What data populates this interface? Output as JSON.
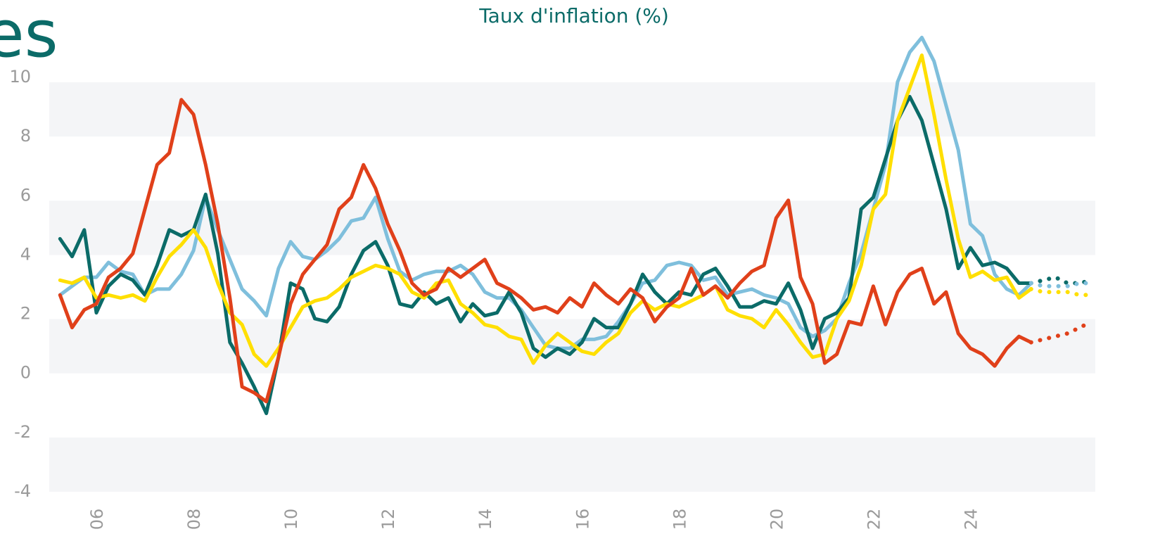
{
  "heading": "es",
  "chart_data": {
    "type": "line",
    "title": "Taux d'inflation (%)",
    "x": [
      2005.25,
      2005.5,
      2005.75,
      2006,
      2006.25,
      2006.5,
      2006.75,
      2007,
      2007.25,
      2007.5,
      2007.75,
      2008,
      2008.25,
      2008.5,
      2008.75,
      2009,
      2009.25,
      2009.5,
      2009.75,
      2010,
      2010.25,
      2010.5,
      2010.75,
      2011,
      2011.25,
      2011.5,
      2011.75,
      2012,
      2012.25,
      2012.5,
      2012.75,
      2013,
      2013.25,
      2013.5,
      2013.75,
      2014,
      2014.25,
      2014.5,
      2014.75,
      2015,
      2015.25,
      2015.5,
      2015.75,
      2016,
      2016.25,
      2016.5,
      2016.75,
      2017,
      2017.25,
      2017.5,
      2017.75,
      2018,
      2018.25,
      2018.5,
      2018.75,
      2019,
      2019.25,
      2019.5,
      2019.75,
      2020,
      2020.25,
      2020.5,
      2020.75,
      2021,
      2021.25,
      2021.5,
      2021.75,
      2022,
      2022.25,
      2022.5,
      2022.75,
      2023,
      2023.25,
      2023.5,
      2023.75,
      2024,
      2024.25,
      2024.5,
      2024.75,
      2025,
      2025.25
    ],
    "series": [
      {
        "color": "#7fbfdc",
        "values": [
          2.6,
          2.9,
          3.2,
          3.2,
          3.7,
          3.4,
          3.3,
          2.6,
          2.8,
          2.8,
          3.3,
          4.1,
          5.9,
          4.8,
          3.8,
          2.8,
          2.4,
          1.9,
          3.5,
          4.4,
          3.9,
          3.8,
          4.1,
          4.5,
          5.1,
          5.2,
          5.9,
          4.5,
          3.4,
          3.1,
          3.3,
          3.4,
          3.4,
          3.6,
          3.3,
          2.7,
          2.5,
          2.5,
          2.1,
          1.5,
          0.9,
          0.8,
          0.8,
          1.1,
          1.1,
          1.2,
          1.7,
          2.3,
          3.0,
          3.1,
          3.6,
          3.7,
          3.6,
          3.1,
          3.2,
          2.6,
          2.7,
          2.8,
          2.6,
          2.5,
          2.3,
          1.5,
          1.2,
          1.4,
          1.8,
          3.0,
          4.0,
          5.5,
          7.0,
          9.8,
          10.8,
          11.3,
          10.5,
          9.0,
          7.5,
          5.0,
          4.6,
          3.3,
          2.8,
          2.6,
          3.0
        ]
      },
      {
        "color": "#0b6b68",
        "values": [
          4.5,
          3.9,
          4.8,
          2.0,
          2.9,
          3.3,
          3.1,
          2.6,
          3.6,
          4.8,
          4.6,
          4.8,
          6.0,
          4.0,
          1.0,
          0.3,
          -0.5,
          -1.4,
          0.5,
          3.0,
          2.8,
          1.8,
          1.7,
          2.2,
          3.3,
          4.1,
          4.4,
          3.6,
          2.3,
          2.2,
          2.7,
          2.3,
          2.5,
          1.7,
          2.3,
          1.9,
          2.0,
          2.7,
          2.0,
          0.8,
          0.5,
          0.8,
          0.6,
          1.0,
          1.8,
          1.5,
          1.5,
          2.3,
          3.3,
          2.7,
          2.3,
          2.7,
          2.6,
          3.3,
          3.5,
          2.9,
          2.2,
          2.2,
          2.4,
          2.3,
          3.0,
          2.1,
          0.8,
          1.8,
          2.0,
          2.5,
          5.5,
          5.9,
          7.2,
          8.5,
          9.3,
          8.5,
          7.0,
          5.5,
          3.5,
          4.2,
          3.6,
          3.7,
          3.5,
          3.0,
          3.0
        ]
      },
      {
        "color": "#ffdf00",
        "values": [
          3.1,
          3.0,
          3.2,
          2.5,
          2.6,
          2.5,
          2.6,
          2.4,
          3.2,
          3.9,
          4.3,
          4.8,
          4.2,
          3.0,
          2.0,
          1.6,
          0.6,
          0.2,
          0.8,
          1.5,
          2.2,
          2.4,
          2.5,
          2.8,
          3.2,
          3.4,
          3.6,
          3.5,
          3.3,
          2.7,
          2.5,
          3.0,
          3.1,
          2.3,
          2.0,
          1.6,
          1.5,
          1.2,
          1.1,
          0.3,
          0.9,
          1.3,
          1.0,
          0.7,
          0.6,
          1.0,
          1.3,
          2.0,
          2.4,
          2.1,
          2.3,
          2.2,
          2.4,
          2.6,
          2.9,
          2.1,
          1.9,
          1.8,
          1.5,
          2.1,
          1.6,
          1.0,
          0.5,
          0.6,
          1.8,
          2.4,
          3.6,
          5.5,
          6.0,
          8.5,
          9.6,
          10.7,
          8.7,
          6.5,
          4.5,
          3.2,
          3.4,
          3.1,
          3.2,
          2.5,
          2.8
        ]
      },
      {
        "color": "#e0401a",
        "values": [
          2.6,
          1.5,
          2.1,
          2.3,
          3.2,
          3.5,
          4.0,
          5.5,
          7.0,
          7.4,
          9.2,
          8.7,
          7.0,
          5.0,
          2.5,
          -0.5,
          -0.7,
          -1.0,
          0.5,
          2.3,
          3.3,
          3.8,
          4.3,
          5.5,
          5.9,
          7.0,
          6.2,
          5.0,
          4.1,
          3.0,
          2.6,
          2.8,
          3.5,
          3.2,
          3.5,
          3.8,
          3.0,
          2.8,
          2.5,
          2.1,
          2.2,
          2.0,
          2.5,
          2.2,
          3.0,
          2.6,
          2.3,
          2.8,
          2.5,
          1.7,
          2.2,
          2.5,
          3.5,
          2.6,
          2.9,
          2.5,
          3.0,
          3.4,
          3.6,
          5.2,
          5.8,
          3.2,
          2.3,
          0.3,
          0.6,
          1.7,
          1.6,
          2.9,
          1.6,
          2.7,
          3.3,
          3.5,
          2.3,
          2.7,
          1.3,
          0.8,
          0.6,
          0.2,
          0.8,
          1.2,
          1.0
        ]
      },
      {
        "color": "#0b6b68",
        "dash": "dotted",
        "x": [
          2025.25,
          2025.5,
          2025.75,
          2026,
          2026.25,
          2026.5
        ],
        "values": [
          3.0,
          3.1,
          3.2,
          3.0,
          3.0,
          3.1
        ]
      },
      {
        "color": "#7fbfdc",
        "dash": "dotted",
        "x": [
          2025.25,
          2025.5,
          2025.75,
          2026,
          2026.25,
          2026.5
        ],
        "values": [
          3.0,
          2.9,
          2.9,
          2.9,
          3.0,
          3.0
        ]
      },
      {
        "color": "#ffdf00",
        "dash": "dotted",
        "x": [
          2025.25,
          2025.5,
          2025.75,
          2026,
          2026.25,
          2026.5
        ],
        "values": [
          2.8,
          2.7,
          2.7,
          2.7,
          2.6,
          2.6
        ]
      },
      {
        "color": "#e0401a",
        "dash": "dotted",
        "x": [
          2025.25,
          2025.5,
          2025.75,
          2026,
          2026.25,
          2026.5
        ],
        "values": [
          1.0,
          1.1,
          1.2,
          1.3,
          1.5,
          1.7
        ]
      }
    ],
    "xlim": [
      2005,
      2026.5
    ],
    "xticks": [
      {
        "value": 2006,
        "label": "06"
      },
      {
        "value": 2008,
        "label": "08"
      },
      {
        "value": 2010,
        "label": "10"
      },
      {
        "value": 2012,
        "label": "12"
      },
      {
        "value": 2014,
        "label": "14"
      },
      {
        "value": 2016,
        "label": "16"
      },
      {
        "value": 2018,
        "label": "18"
      },
      {
        "value": 2020,
        "label": "20"
      },
      {
        "value": 2022,
        "label": "22"
      },
      {
        "value": 2024,
        "label": "24"
      }
    ],
    "ylim": [
      -4,
      10
    ],
    "yticks": [
      -4,
      -2,
      0,
      2,
      4,
      6,
      8,
      10
    ],
    "bands": true
  }
}
